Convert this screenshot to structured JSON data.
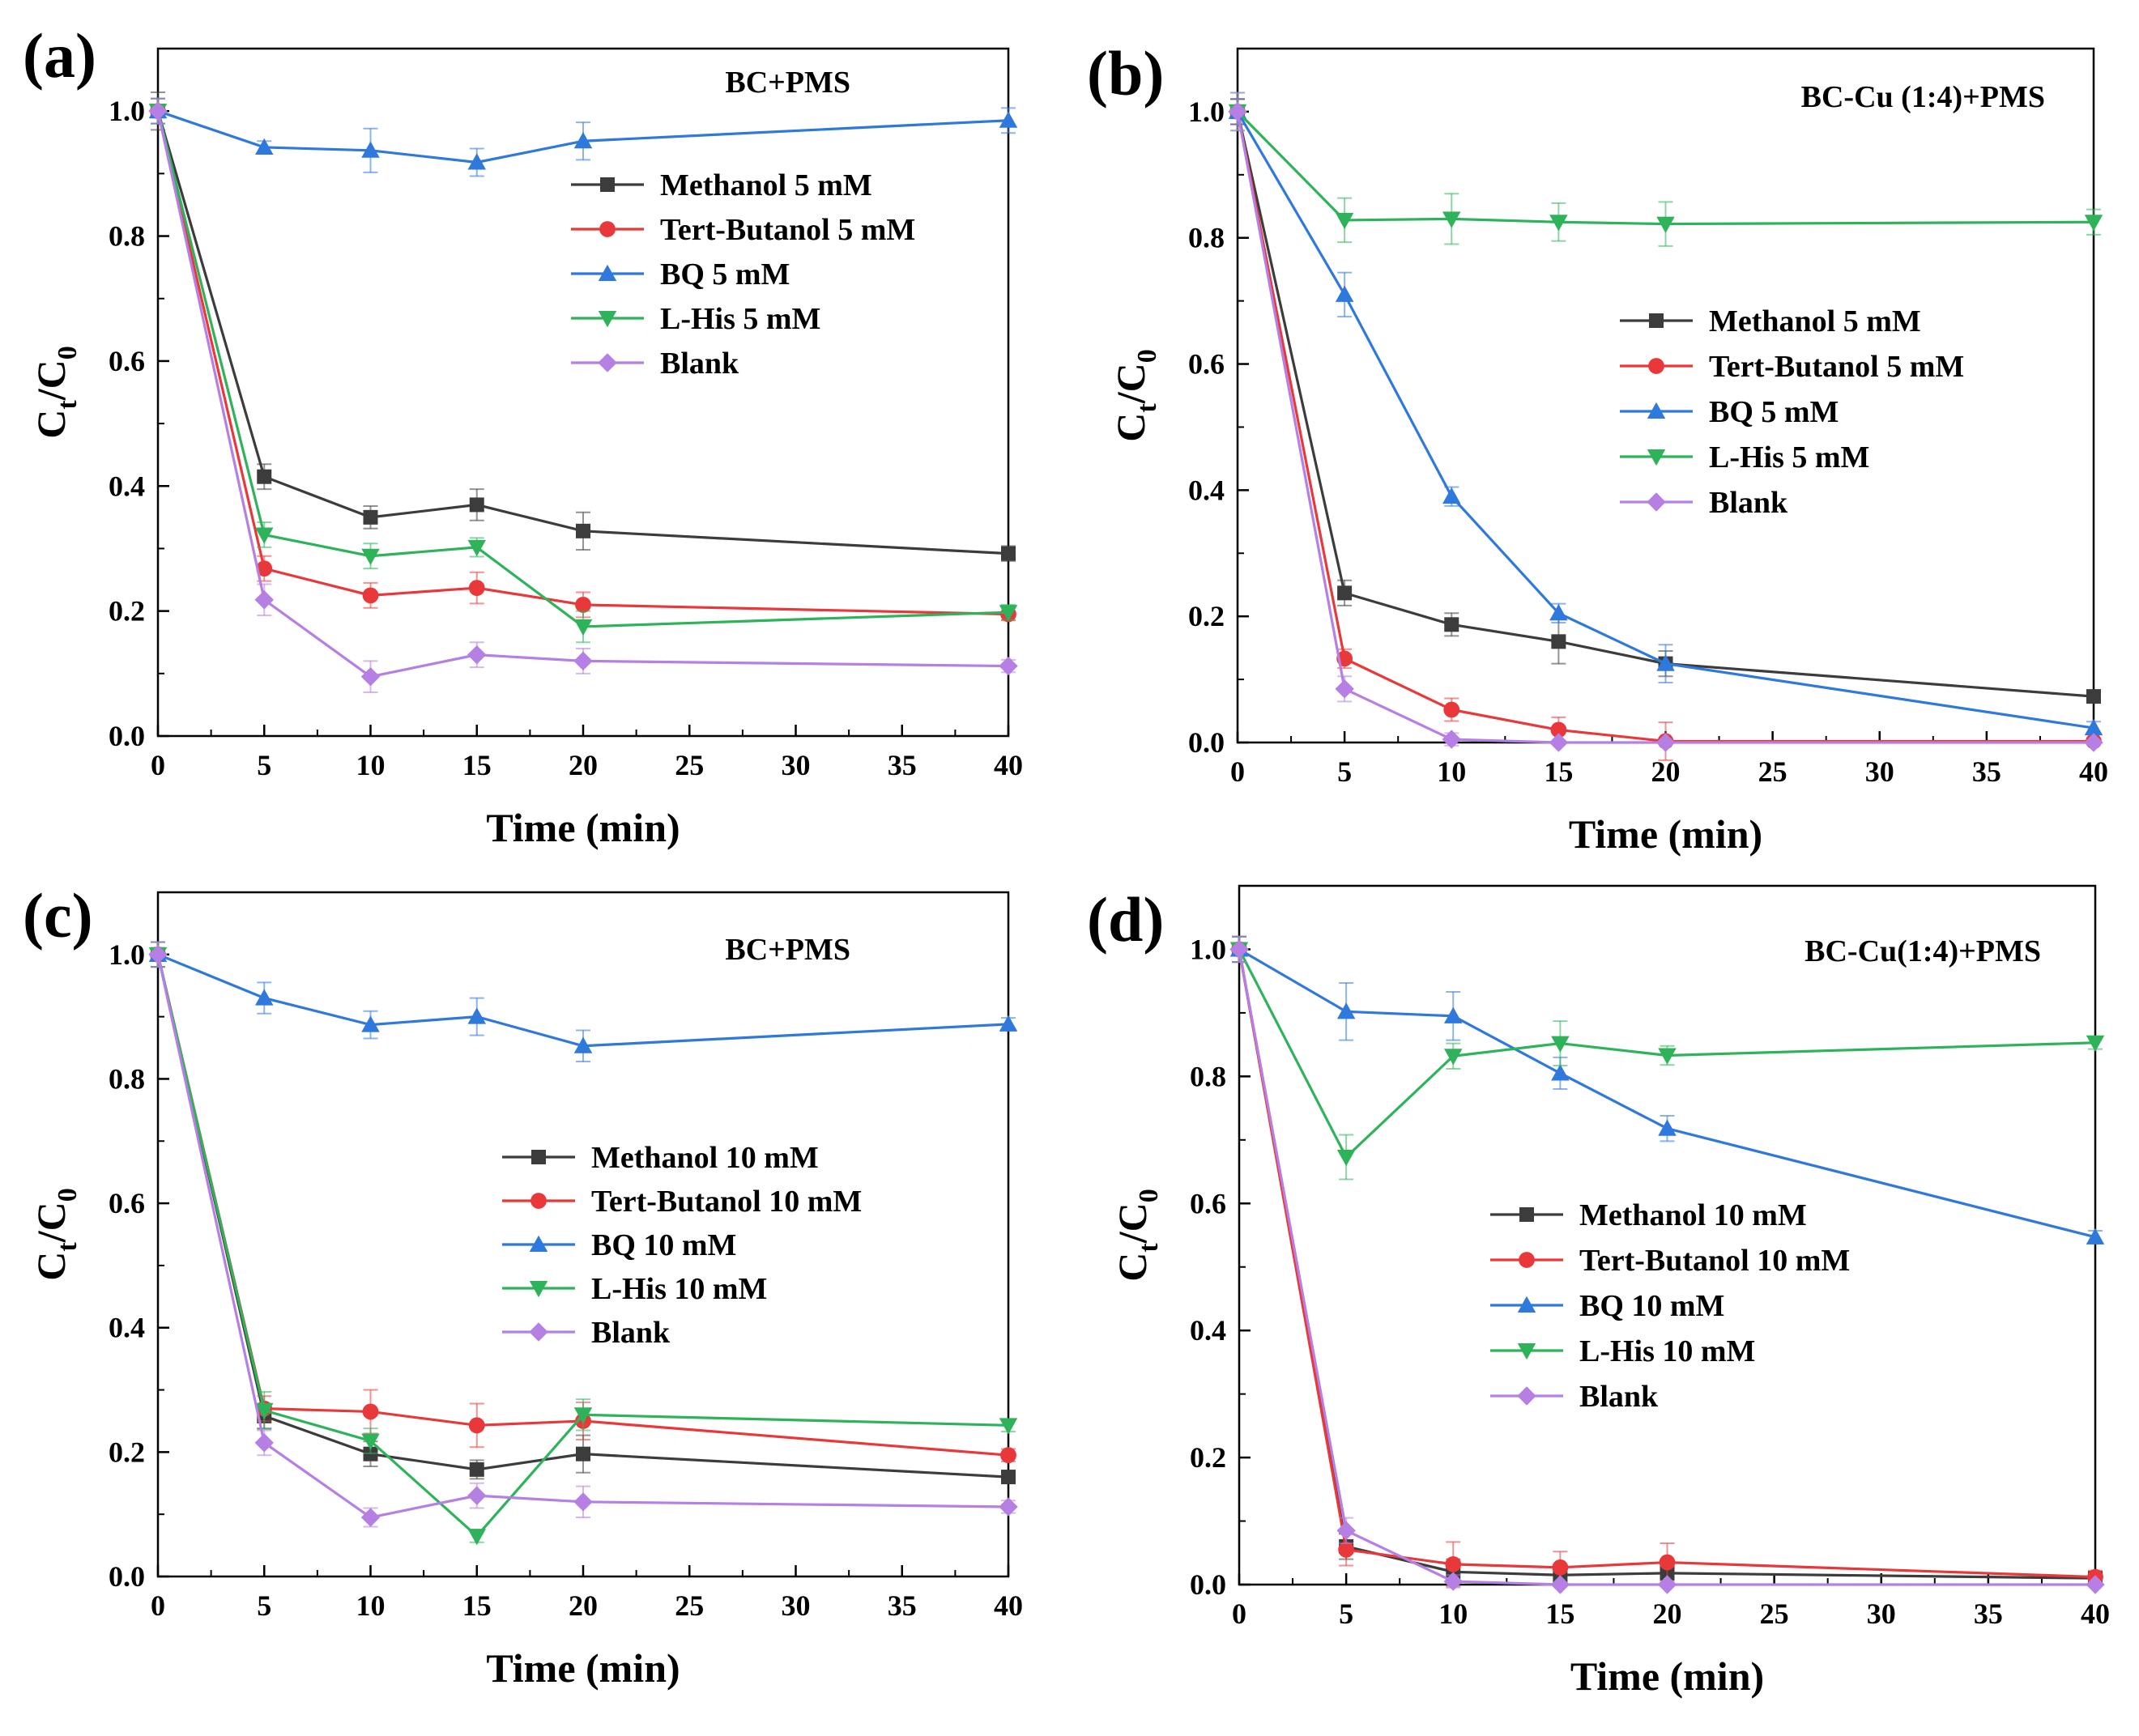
{
  "figure": {
    "colors": {
      "Methanol": "#3c3c3c",
      "Tert-Butanol": "#e8383a",
      "BQ": "#2f78dc",
      "L-His": "#2fb35a",
      "Blank": "#b57fe3"
    },
    "markers": {
      "Methanol": "square",
      "Tert-Butanol": "circle",
      "BQ": "triangle-up",
      "L-His": "triangle-down",
      "Blank": "diamond"
    }
  },
  "chart_data": [
    {
      "type": "line",
      "panel_label": "(a)",
      "annotation": "BC+PMS",
      "xlabel": "Time (min)",
      "ylabel_main": "C",
      "ylabel_sub1": "t",
      "ylabel_slash": "/C",
      "ylabel_sub2": "0",
      "xlim": [
        0,
        40
      ],
      "ylim": [
        0,
        1.1
      ],
      "xticks": [
        "0",
        "5",
        "10",
        "15",
        "20",
        "25",
        "30",
        "35",
        "40"
      ],
      "yticks": [
        "0.0",
        "0.2",
        "0.4",
        "0.6",
        "0.8",
        "1.0"
      ],
      "legend_position": "upper-right",
      "x": [
        0,
        5,
        10,
        15,
        20,
        40
      ],
      "series": [
        {
          "name": "Methanol 5 mM",
          "key": "Methanol",
          "values": [
            1.0,
            0.415,
            0.35,
            0.37,
            0.328,
            0.292
          ],
          "err": [
            0.03,
            0.02,
            0.018,
            0.025,
            0.03,
            0.012
          ]
        },
        {
          "name": "Tert-Butanol 5 mM",
          "key": "Tert-Butanol",
          "values": [
            1.0,
            0.268,
            0.225,
            0.237,
            0.21,
            0.195
          ],
          "err": [
            0.02,
            0.02,
            0.02,
            0.025,
            0.02,
            0.01
          ]
        },
        {
          "name": "BQ 5 mM",
          "key": "BQ",
          "values": [
            1.0,
            0.942,
            0.937,
            0.918,
            0.952,
            0.985
          ],
          "err": [
            0.02,
            0.01,
            0.035,
            0.022,
            0.03,
            0.02
          ]
        },
        {
          "name": "L-His 5 mM",
          "key": "L-His",
          "values": [
            1.0,
            0.322,
            0.288,
            0.302,
            0.175,
            0.198
          ],
          "err": [
            0.02,
            0.02,
            0.02,
            0.015,
            0.025,
            0.012
          ]
        },
        {
          "name": "Blank",
          "key": "Blank",
          "values": [
            1.0,
            0.218,
            0.095,
            0.13,
            0.12,
            0.112
          ],
          "err": [
            0.02,
            0.025,
            0.025,
            0.02,
            0.02,
            0.01
          ]
        }
      ]
    },
    {
      "type": "line",
      "panel_label": "(b)",
      "annotation": "BC-Cu (1:4)+PMS",
      "xlabel": "Time (min)",
      "ylabel_main": "C",
      "ylabel_sub1": "t",
      "ylabel_slash": "/C",
      "ylabel_sub2": "0",
      "xlim": [
        0,
        40
      ],
      "ylim": [
        0,
        1.1
      ],
      "xticks": [
        "0",
        "5",
        "10",
        "15",
        "20",
        "25",
        "30",
        "35",
        "40"
      ],
      "yticks": [
        "0.0",
        "0.2",
        "0.4",
        "0.6",
        "0.8",
        "1.0"
      ],
      "legend_position": "center-right",
      "x": [
        0,
        5,
        10,
        15,
        20,
        40
      ],
      "series": [
        {
          "name": "Methanol 5 mM",
          "key": "Methanol",
          "values": [
            1.0,
            0.237,
            0.187,
            0.16,
            0.125,
            0.073
          ],
          "err": [
            0.02,
            0.02,
            0.018,
            0.035,
            0.02,
            0.01
          ]
        },
        {
          "name": "Tert-Butanol 5 mM",
          "key": "Tert-Butanol",
          "values": [
            1.0,
            0.133,
            0.052,
            0.02,
            0.002,
            0.002
          ],
          "err": [
            0.02,
            0.015,
            0.018,
            0.02,
            0.03,
            0.005
          ]
        },
        {
          "name": "BQ 5 mM",
          "key": "BQ",
          "values": [
            1.0,
            0.71,
            0.39,
            0.205,
            0.125,
            0.023
          ],
          "err": [
            0.02,
            0.035,
            0.015,
            0.015,
            0.03,
            0.01
          ]
        },
        {
          "name": "L-His 5 mM",
          "key": "L-His",
          "values": [
            1.0,
            0.828,
            0.83,
            0.825,
            0.822,
            0.825
          ],
          "err": [
            0.03,
            0.035,
            0.04,
            0.03,
            0.035,
            0.02
          ]
        },
        {
          "name": "Blank",
          "key": "Blank",
          "values": [
            1.0,
            0.085,
            0.005,
            0.0,
            0.0,
            0.0
          ],
          "err": [
            0.03,
            0.02,
            0.01,
            0.0,
            0.0,
            0.0
          ]
        }
      ]
    },
    {
      "type": "line",
      "panel_label": "(c)",
      "annotation": "BC+PMS",
      "xlabel": "Time (min)",
      "ylabel_main": "C",
      "ylabel_sub1": "t",
      "ylabel_slash": "/C",
      "ylabel_sub2": "0",
      "xlim": [
        0,
        40
      ],
      "ylim": [
        0,
        1.1
      ],
      "xticks": [
        "0",
        "5",
        "10",
        "15",
        "20",
        "25",
        "30",
        "35",
        "40"
      ],
      "yticks": [
        "0.0",
        "0.2",
        "0.4",
        "0.6",
        "0.8",
        "1.0"
      ],
      "legend_position": "center-right",
      "x": [
        0,
        5,
        10,
        15,
        20,
        40
      ],
      "series": [
        {
          "name": "Methanol 10 mM",
          "key": "Methanol",
          "values": [
            1.0,
            0.258,
            0.197,
            0.172,
            0.197,
            0.16
          ],
          "err": [
            0.02,
            0.02,
            0.02,
            0.015,
            0.03,
            0.01
          ]
        },
        {
          "name": "Tert-Butanol 10 mM",
          "key": "Tert-Butanol",
          "values": [
            1.0,
            0.27,
            0.265,
            0.243,
            0.25,
            0.195
          ],
          "err": [
            0.02,
            0.02,
            0.035,
            0.035,
            0.03,
            0.01
          ]
        },
        {
          "name": "BQ 10 mM",
          "key": "BQ",
          "values": [
            1.0,
            0.93,
            0.887,
            0.9,
            0.853,
            0.888
          ],
          "err": [
            0.02,
            0.025,
            0.022,
            0.03,
            0.025,
            0.01
          ]
        },
        {
          "name": "L-His 10 mM",
          "key": "L-His",
          "values": [
            1.0,
            0.267,
            0.218,
            0.065,
            0.26,
            0.243
          ],
          "err": [
            0.02,
            0.03,
            0.02,
            0.01,
            0.025,
            0.01
          ]
        },
        {
          "name": "Blank",
          "key": "Blank",
          "values": [
            1.0,
            0.215,
            0.095,
            0.13,
            0.12,
            0.112
          ],
          "err": [
            0.02,
            0.02,
            0.015,
            0.02,
            0.025,
            0.01
          ]
        }
      ]
    },
    {
      "type": "line",
      "panel_label": "(d)",
      "annotation": "BC-Cu(1:4)+PMS",
      "xlabel": "Time (min)",
      "ylabel_main": "C",
      "ylabel_sub1": "t",
      "ylabel_slash": "/C",
      "ylabel_sub2": "0",
      "xlim": [
        0,
        40
      ],
      "ylim": [
        0,
        1.1
      ],
      "xticks": [
        "0",
        "5",
        "10",
        "15",
        "20",
        "25",
        "30",
        "35",
        "40"
      ],
      "yticks": [
        "0.0",
        "0.2",
        "0.4",
        "0.6",
        "0.8",
        "1.0"
      ],
      "legend_position": "center",
      "x": [
        0,
        5,
        10,
        15,
        20,
        40
      ],
      "series": [
        {
          "name": "Methanol 10 mM",
          "key": "Methanol",
          "values": [
            1.0,
            0.06,
            0.02,
            0.015,
            0.018,
            0.01
          ],
          "err": [
            0.02,
            0.02,
            0.02,
            0.01,
            0.01,
            0.005
          ]
        },
        {
          "name": "Tert-Butanol 10 mM",
          "key": "Tert-Butanol",
          "values": [
            1.0,
            0.055,
            0.032,
            0.027,
            0.035,
            0.012
          ],
          "err": [
            0.02,
            0.025,
            0.035,
            0.025,
            0.03,
            0.01
          ]
        },
        {
          "name": "BQ 10 mM",
          "key": "BQ",
          "values": [
            1.0,
            0.902,
            0.895,
            0.805,
            0.718,
            0.547
          ],
          "err": [
            0.02,
            0.045,
            0.038,
            0.025,
            0.02,
            0.01
          ]
        },
        {
          "name": "L-His 10 mM",
          "key": "L-His",
          "values": [
            1.0,
            0.673,
            0.832,
            0.852,
            0.833,
            0.853
          ],
          "err": [
            0.02,
            0.035,
            0.02,
            0.035,
            0.015,
            0.01
          ]
        },
        {
          "name": "Blank",
          "key": "Blank",
          "values": [
            1.0,
            0.085,
            0.005,
            0.0,
            0.0,
            0.0
          ],
          "err": [
            0.02,
            0.02,
            0.01,
            0.0,
            0.0,
            0.0
          ]
        }
      ]
    }
  ]
}
